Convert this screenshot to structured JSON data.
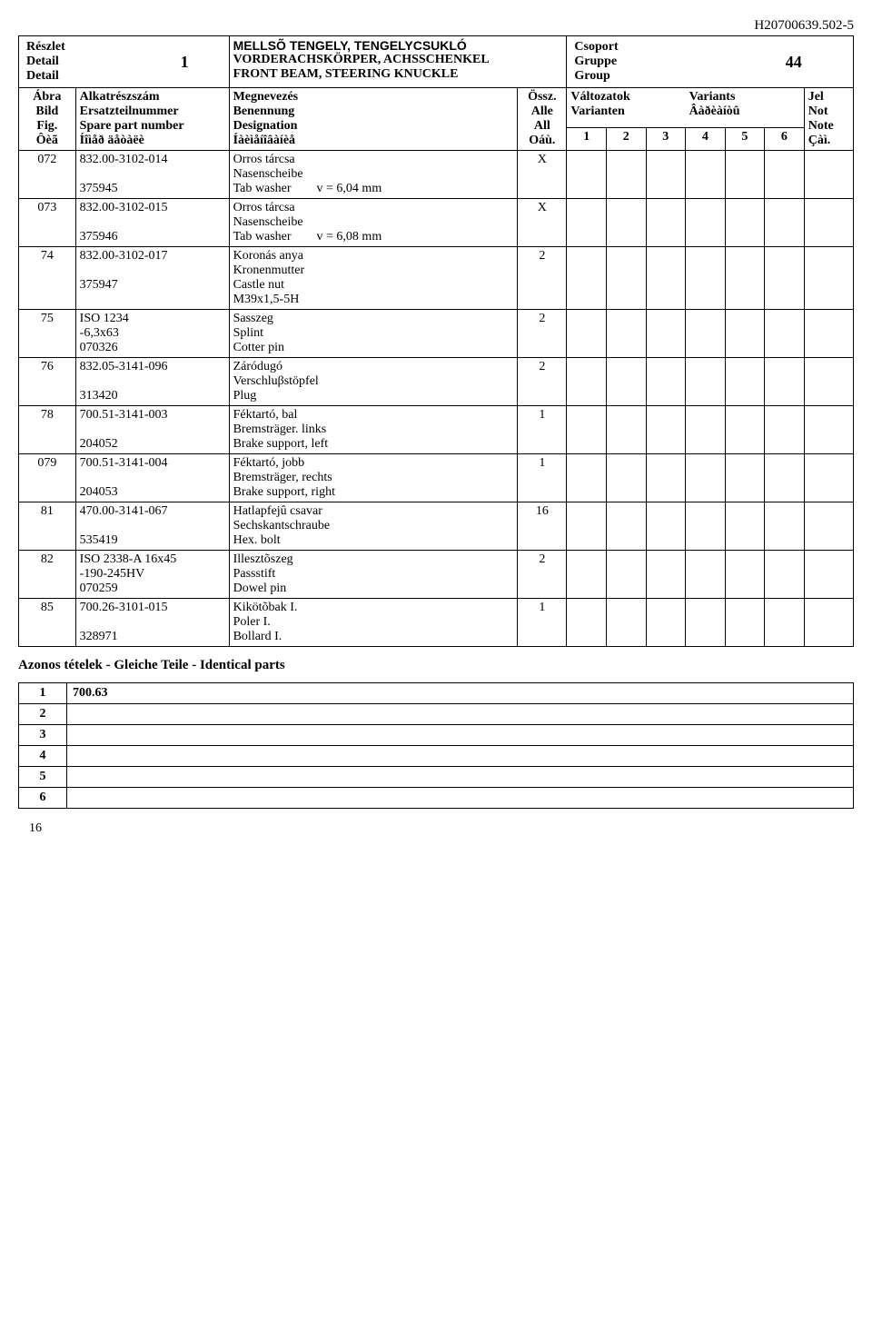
{
  "doc_id": "H20700639.502-5",
  "header": {
    "detail_block": "Részlet\nDetail\nDetail",
    "detail_num": "1",
    "title_main": "MELLSÕ TENGELY, TENGELYCSUKLÓ",
    "title_de": "VORDERACHSKÖRPER, ACHSSCHENKEL",
    "title_en": "FRONT BEAM, STEERING KNUCKLE",
    "group_block": "Csoport\nGruppe\nGroup",
    "group_num": "44",
    "col_fig": "Ábra\nBild\nFig.\nÔèã",
    "col_part": "Alkatrészszám\nErsatzteilnummer\nSpare part number\nÍîìåð äåòàëè",
    "col_desc": "Megnevezés\nBenennung\nDesignation\nÍàèìåíîâàíèå",
    "col_all": "Össz.\nAlle\nAll\nOáù.",
    "col_var_hu": "Változatok",
    "col_var_de": "Varianten",
    "col_var_en": "Variants",
    "col_var_ru": "Âàðèàíòû",
    "col_note": "Jel\nNot\nNote\nÇàì."
  },
  "variants": [
    "1",
    "2",
    "3",
    "4",
    "5",
    "6"
  ],
  "rows": [
    {
      "fig": "072",
      "part": "832.00-3102-014\n\n375945",
      "desc": "Orros tárcsa\nNasenscheibe\nTab washer        v = 6,04 mm",
      "all": "X"
    },
    {
      "fig": "073",
      "part": "832.00-3102-015\n\n375946",
      "desc": "Orros tárcsa\nNasenscheibe\nTab washer        v = 6,08 mm",
      "all": "X"
    },
    {
      "fig": "74",
      "part": "832.00-3102-017\n\n375947",
      "desc": "Koronás anya\nKronenmutter\nCastle nut\nM39x1,5-5H",
      "all": "2"
    },
    {
      "fig": "75",
      "part": "ISO 1234\n-6,3x63\n070326",
      "desc": "Sasszeg\nSplint\nCotter pin",
      "all": "2"
    },
    {
      "fig": "76",
      "part": "832.05-3141-096\n\n313420",
      "desc": "Záródugó\nVerschluβstöpfel\nPlug",
      "all": "2"
    },
    {
      "fig": "78",
      "part": "700.51-3141-003\n\n204052",
      "desc": "Féktartó, bal\nBremsträger. links\nBrake support, left",
      "all": "1"
    },
    {
      "fig": "079",
      "part": "700.51-3141-004\n\n204053",
      "desc": "Féktartó, jobb\nBremsträger, rechts\nBrake support, right",
      "all": "1"
    },
    {
      "fig": "81",
      "part": "470.00-3141-067\n\n535419",
      "desc": "Hatlapfejû csavar\nSechskantschraube\nHex. bolt",
      "all": "16"
    },
    {
      "fig": "82",
      "part": "ISO 2338-A 16x45\n-190-245HV\n070259",
      "desc": "Illesztõszeg\nPassstift\nDowel pin",
      "all": "2"
    },
    {
      "fig": "85",
      "part": "700.26-3101-015\n\n328971",
      "desc": "Kikötõbak I.\nPoler I.\nBollard I.",
      "all": "1"
    }
  ],
  "identical_title": "Azonos tételek - Gleiche Teile - Identical parts",
  "identical_rows": [
    {
      "n": "1",
      "v": "700.63"
    },
    {
      "n": "2",
      "v": ""
    },
    {
      "n": "3",
      "v": ""
    },
    {
      "n": "4",
      "v": ""
    },
    {
      "n": "5",
      "v": ""
    },
    {
      "n": "6",
      "v": ""
    }
  ],
  "page_number": "16"
}
